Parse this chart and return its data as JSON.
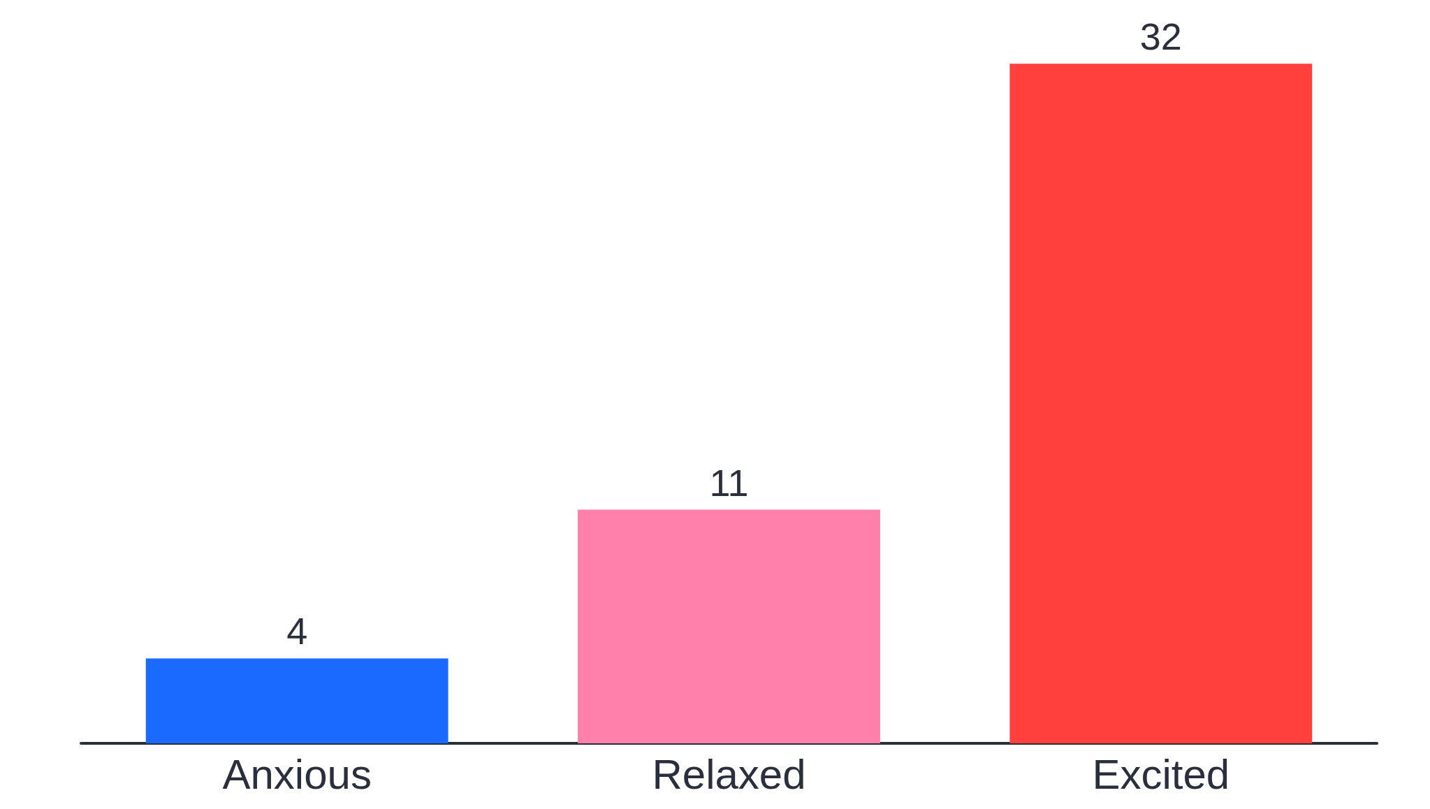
{
  "chart_data": {
    "type": "bar",
    "categories": [
      "Anxious",
      "Relaxed",
      "Excited"
    ],
    "values": [
      4,
      11,
      32
    ],
    "colors": [
      "#1a6aff",
      "#ff80aa",
      "#ff403d"
    ],
    "data_labels": true
  }
}
